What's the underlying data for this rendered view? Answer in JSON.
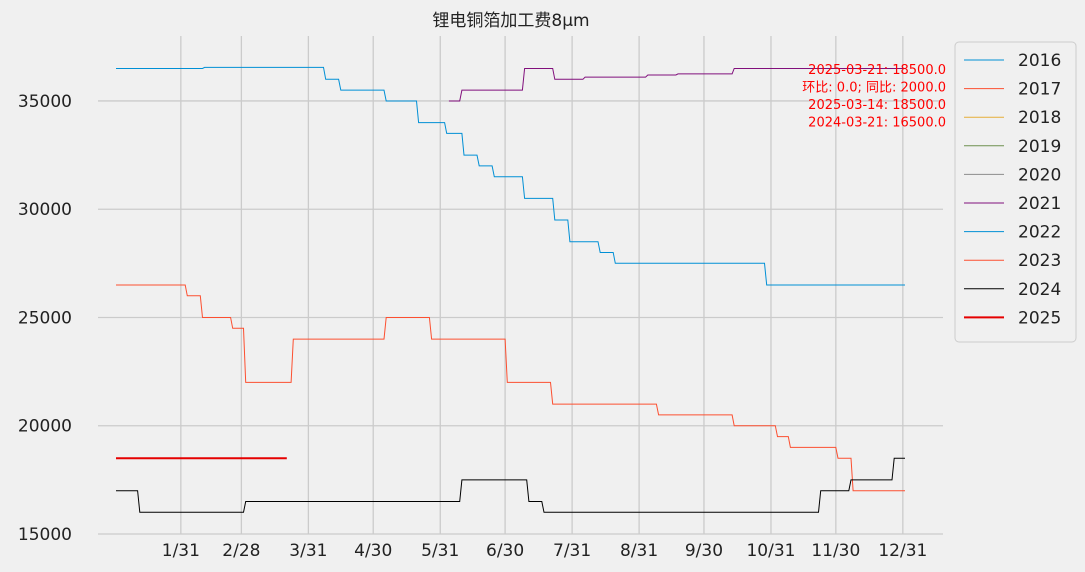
{
  "chart_data": {
    "type": "line",
    "title": "锂电铜箔加工费8μm",
    "xlabel": "",
    "ylabel": "",
    "x_ticks": [
      "1/31",
      "2/28",
      "3/31",
      "4/30",
      "5/31",
      "6/30",
      "7/31",
      "8/31",
      "9/30",
      "10/31",
      "11/30",
      "12/31"
    ],
    "x_tick_days": [
      30,
      58,
      89,
      119,
      150,
      180,
      211,
      242,
      272,
      303,
      333,
      364
    ],
    "x_domain_days": [
      0,
      365
    ],
    "ylim": [
      15000,
      38000
    ],
    "y_ticks": [
      15000,
      20000,
      25000,
      30000,
      35000
    ],
    "grid": true,
    "legend_position": "right",
    "annotation_color": "#ff0000",
    "annotations": [
      "2025-03-21: 18500.0",
      "环比: 0.0; 同比: 2000.0",
      "2025-03-14: 18500.0",
      "2024-03-21: 16500.0"
    ],
    "series": [
      {
        "name": "2016",
        "color": "#008fd5",
        "width": 1,
        "points": []
      },
      {
        "name": "2017",
        "color": "#fc4f30",
        "width": 1,
        "points": []
      },
      {
        "name": "2018",
        "color": "#e5ae38",
        "width": 1,
        "points": []
      },
      {
        "name": "2019",
        "color": "#6d904f",
        "width": 1,
        "points": []
      },
      {
        "name": "2020",
        "color": "#8b8b8b",
        "width": 1,
        "points": []
      },
      {
        "name": "2021",
        "color": "#810f7c",
        "width": 1,
        "points": [
          [
            154,
            35000
          ],
          [
            159,
            35000
          ],
          [
            160,
            35500
          ],
          [
            188,
            35500
          ],
          [
            189,
            36500
          ],
          [
            202,
            36500
          ],
          [
            203,
            36000
          ],
          [
            216,
            36000
          ],
          [
            217,
            36100
          ],
          [
            245,
            36100
          ],
          [
            246,
            36200
          ],
          [
            259,
            36200
          ],
          [
            260,
            36250
          ],
          [
            285,
            36250
          ],
          [
            286,
            36500
          ],
          [
            365,
            36500
          ]
        ]
      },
      {
        "name": "2022",
        "color": "#008fd5",
        "width": 1,
        "points": [
          [
            0,
            36500
          ],
          [
            40,
            36500
          ],
          [
            41,
            36550
          ],
          [
            96,
            36550
          ],
          [
            97,
            36000
          ],
          [
            103,
            36000
          ],
          [
            104,
            35500
          ],
          [
            124,
            35500
          ],
          [
            125,
            35000
          ],
          [
            139,
            35000
          ],
          [
            140,
            34000
          ],
          [
            152,
            34000
          ],
          [
            153,
            33500
          ],
          [
            160,
            33500
          ],
          [
            161,
            32500
          ],
          [
            167,
            32500
          ],
          [
            168,
            32000
          ],
          [
            174,
            32000
          ],
          [
            175,
            31500
          ],
          [
            188,
            31500
          ],
          [
            189,
            30500
          ],
          [
            202,
            30500
          ],
          [
            203,
            29500
          ],
          [
            209,
            29500
          ],
          [
            210,
            28500
          ],
          [
            223,
            28500
          ],
          [
            224,
            28000
          ],
          [
            230,
            28000
          ],
          [
            231,
            27500
          ],
          [
            300,
            27500
          ],
          [
            301,
            26500
          ],
          [
            365,
            26500
          ]
        ]
      },
      {
        "name": "2023",
        "color": "#fc4f30",
        "width": 1,
        "points": [
          [
            0,
            26500
          ],
          [
            32,
            26500
          ],
          [
            33,
            26000
          ],
          [
            39,
            26000
          ],
          [
            40,
            25000
          ],
          [
            53,
            25000
          ],
          [
            54,
            24500
          ],
          [
            59,
            24500
          ],
          [
            60,
            22000
          ],
          [
            81,
            22000
          ],
          [
            82,
            24000
          ],
          [
            124,
            24000
          ],
          [
            125,
            25000
          ],
          [
            145,
            25000
          ],
          [
            146,
            24000
          ],
          [
            180,
            24000
          ],
          [
            181,
            22000
          ],
          [
            201,
            22000
          ],
          [
            202,
            21000
          ],
          [
            250,
            21000
          ],
          [
            251,
            20500
          ],
          [
            285,
            20500
          ],
          [
            286,
            20000
          ],
          [
            305,
            20000
          ],
          [
            306,
            19500
          ],
          [
            311,
            19500
          ],
          [
            312,
            19000
          ],
          [
            333,
            19000
          ],
          [
            334,
            18500
          ],
          [
            340,
            18500
          ],
          [
            341,
            17000
          ],
          [
            365,
            17000
          ]
        ]
      },
      {
        "name": "2024",
        "color": "#000000",
        "width": 1,
        "points": [
          [
            0,
            17000
          ],
          [
            10,
            17000
          ],
          [
            11,
            16000
          ],
          [
            59,
            16000
          ],
          [
            60,
            16500
          ],
          [
            159,
            16500
          ],
          [
            160,
            17500
          ],
          [
            190,
            17500
          ],
          [
            191,
            16500
          ],
          [
            197,
            16500
          ],
          [
            198,
            16000
          ],
          [
            325,
            16000
          ],
          [
            326,
            17000
          ],
          [
            339,
            17000
          ],
          [
            340,
            17500
          ],
          [
            359,
            17500
          ],
          [
            360,
            18500
          ],
          [
            365,
            18500
          ]
        ]
      },
      {
        "name": "2025",
        "color": "#e50000",
        "width": 2,
        "points": [
          [
            0,
            18500
          ],
          [
            79,
            18500
          ]
        ]
      }
    ]
  }
}
